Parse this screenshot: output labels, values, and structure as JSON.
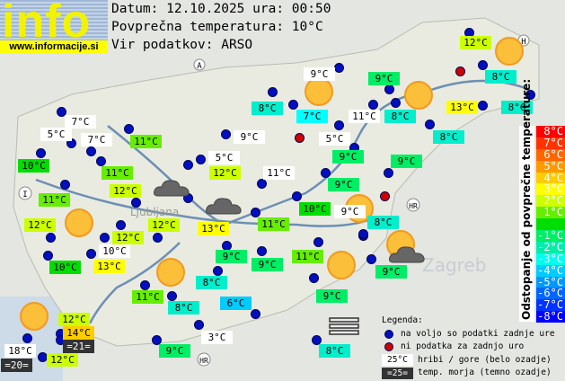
{
  "header": {
    "logo_text": "info",
    "logo_url": "www.informacije.si",
    "date_line": "Datum: 12.10.2025 ura: 00:50",
    "avg_line": "Povprečna temperatura: 10°C",
    "source_line": "Vir podatkov: ARSO"
  },
  "map_labels": {
    "country_a": "A",
    "country_i": "I",
    "country_h": "H",
    "country_hr": "HR",
    "city_zagreb": "Zagreb",
    "city_ljubljana": "Ljubljana"
  },
  "colors": {
    "t3": "#00ffee",
    "t6": "#00ccff",
    "t7": "#00ffff",
    "t8": "#00eecc",
    "t9": "#00ee66",
    "t10": "#00dd00",
    "t11": "#66ee00",
    "t12": "#ccff00",
    "t13": "#ffff00",
    "t14": "#ffcc00",
    "mountain": "#ffffff",
    "sea": "#333333"
  },
  "stations": [
    {
      "v": "12°C",
      "c": "t12"
    },
    {
      "v": "9°C",
      "c": "mountain"
    },
    {
      "v": "9°C",
      "c": "t9"
    },
    {
      "v": "8°C",
      "c": "t8"
    },
    {
      "v": "8°C",
      "c": "t8"
    },
    {
      "v": "7°C",
      "c": "t7"
    },
    {
      "v": "11°C",
      "c": "mountain"
    },
    {
      "v": "8°C",
      "c": "t8"
    },
    {
      "v": "13°C",
      "c": "t13"
    },
    {
      "v": "8°C",
      "c": "t8"
    },
    {
      "v": "7°C",
      "c": "mountain"
    },
    {
      "v": "5°C",
      "c": "mountain"
    },
    {
      "v": "7°C",
      "c": "mountain"
    },
    {
      "v": "11°C",
      "c": "t11"
    },
    {
      "v": "9°C",
      "c": "mountain"
    },
    {
      "v": "5°C",
      "c": "mountain"
    },
    {
      "v": "8°C",
      "c": "t8"
    },
    {
      "v": "10°C",
      "c": "t10"
    },
    {
      "v": "5°C",
      "c": "mountain"
    },
    {
      "v": "9°C",
      "c": "t9"
    },
    {
      "v": "9°C",
      "c": "t9"
    },
    {
      "v": "11°C",
      "c": "t11"
    },
    {
      "v": "12°C",
      "c": "t12"
    },
    {
      "v": "11°C",
      "c": "mountain"
    },
    {
      "v": "9°C",
      "c": "t9"
    },
    {
      "v": "11°C",
      "c": "t11"
    },
    {
      "v": "12°C",
      "c": "t12"
    },
    {
      "v": "10°C",
      "c": "t10"
    },
    {
      "v": "9°C",
      "c": "mountain"
    },
    {
      "v": "12°C",
      "c": "t12"
    },
    {
      "v": "12°C",
      "c": "t12"
    },
    {
      "v": "13°C",
      "c": "t13"
    },
    {
      "v": "11°C",
      "c": "t11"
    },
    {
      "v": "8°C",
      "c": "t8"
    },
    {
      "v": "12°C",
      "c": "t12"
    },
    {
      "v": "10°C",
      "c": "mountain"
    },
    {
      "v": "9°C",
      "c": "t9"
    },
    {
      "v": "11°C",
      "c": "t11"
    },
    {
      "v": "10°C",
      "c": "t10"
    },
    {
      "v": "13°C",
      "c": "t13"
    },
    {
      "v": "9°C",
      "c": "t9"
    },
    {
      "v": "9°C",
      "c": "t9"
    },
    {
      "v": "8°C",
      "c": "t8"
    },
    {
      "v": "11°C",
      "c": "t11"
    },
    {
      "v": "9°C",
      "c": "t9"
    },
    {
      "v": "8°C",
      "c": "t8"
    },
    {
      "v": "6°C",
      "c": "t6"
    },
    {
      "v": "12°C",
      "c": "t12"
    },
    {
      "v": "14°C",
      "c": "t14"
    },
    {
      "v": "=21=",
      "c": "sea"
    },
    {
      "v": "18°C",
      "c": "mountain"
    },
    {
      "v": "=20=",
      "c": "sea"
    },
    {
      "v": "12°C",
      "c": "t12"
    },
    {
      "v": "3°C",
      "c": "mountain"
    },
    {
      "v": "9°C",
      "c": "t9"
    },
    {
      "v": "8°C",
      "c": "t8"
    }
  ],
  "scale": {
    "title": "Odstopanje od povprečne temperature:",
    "rows": [
      {
        "t": "8°C",
        "c": "#ff0000"
      },
      {
        "t": "7°C",
        "c": "#ff3300"
      },
      {
        "t": "6°C",
        "c": "#ff6600"
      },
      {
        "t": "5°C",
        "c": "#ff9900"
      },
      {
        "t": "4°C",
        "c": "#ffcc00"
      },
      {
        "t": "3°C",
        "c": "#ffff00"
      },
      {
        "t": "2°C",
        "c": "#ccff00"
      },
      {
        "t": "1°C",
        "c": "#66ee00"
      },
      {
        "t": "",
        "c": "#00dd00"
      },
      {
        "t": "-1°C",
        "c": "#00ee66"
      },
      {
        "t": "-2°C",
        "c": "#00eeaa"
      },
      {
        "t": "-3°C",
        "c": "#00ffee"
      },
      {
        "t": "-4°C",
        "c": "#00ccff"
      },
      {
        "t": "-5°C",
        "c": "#0099ff"
      },
      {
        "t": "-6°C",
        "c": "#0066ff"
      },
      {
        "t": "-7°C",
        "c": "#0033ff"
      },
      {
        "t": "-8°C",
        "c": "#0000ff"
      }
    ]
  },
  "legend": {
    "title": "Legenda:",
    "blue": "na voljo so podatki zadnje ure",
    "red": "ni podatka za zadnjo uro",
    "white_sample": "25°C",
    "white_text": "hribi / gore (belo ozadje)",
    "dark_sample": "=25=",
    "dark_text": "temp. morja (temno ozadje)"
  }
}
